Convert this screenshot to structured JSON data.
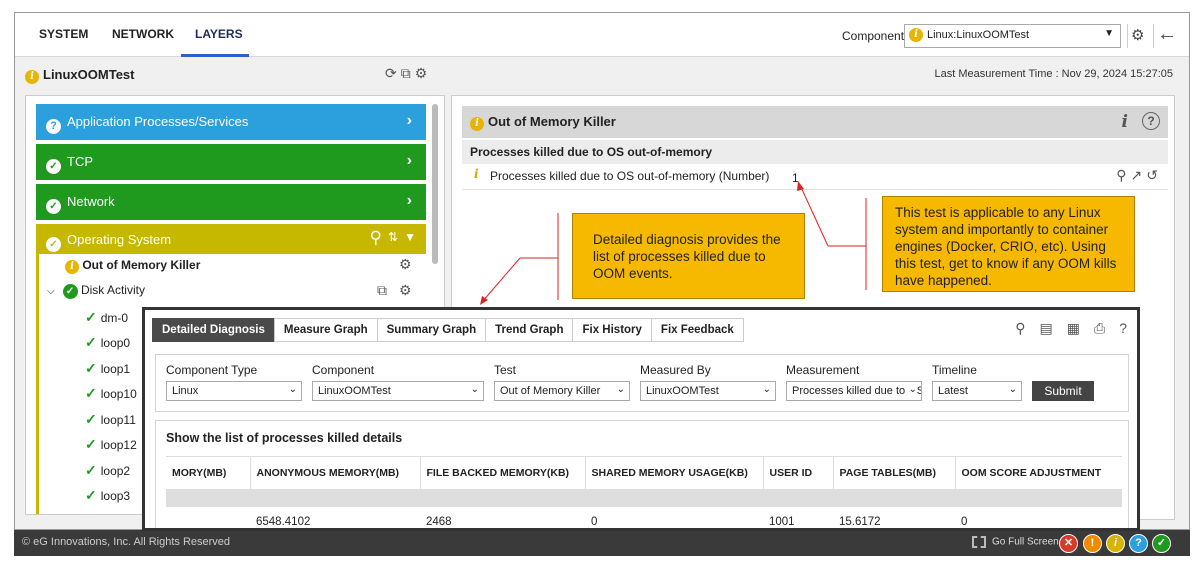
{
  "tabs": [
    "SYSTEM",
    "NETWORK",
    "LAYERS"
  ],
  "active_tab": "LAYERS",
  "component_label": "Component",
  "component_value": "Linux:LinuxOOMTest",
  "title": "LinuxOOMTest",
  "last_measurement": "Last Measurement Time : Nov 29, 2024 15:27:05",
  "layers": {
    "app": "Application Processes/Services",
    "tcp": "TCP",
    "network": "Network",
    "os": "Operating System"
  },
  "tree": {
    "oom": "Out of Memory Killer",
    "disk": "Disk Activity",
    "items": [
      "dm-0",
      "loop0",
      "loop1",
      "loop10",
      "loop11",
      "loop12",
      "loop2",
      "loop3"
    ]
  },
  "right": {
    "header": "Out of Memory Killer",
    "sub": "Processes killed due to OS out-of-memory",
    "measure": "Processes killed due to OS out-of-memory (Number)",
    "value": "1"
  },
  "callouts": {
    "diagnosis": "Detailed diagnosis provides the list of processes killed due to OOM events.",
    "applicable": "This test is applicable to any Linux system and importantly to container engines (Docker, CRIO, etc). Using this test, get to know if any OOM kills have happened."
  },
  "overlay": {
    "tabs": [
      "Detailed Diagnosis",
      "Measure Graph",
      "Summary Graph",
      "Trend Graph",
      "Fix History",
      "Fix Feedback"
    ],
    "filters": {
      "labels": [
        "Component Type",
        "Component",
        "Test",
        "Measured By",
        "Measurement",
        "Timeline"
      ],
      "values": [
        "Linux",
        "LinuxOOMTest",
        "Out of Memory Killer",
        "LinuxOOMTest",
        "Processes killed due to OS out-of-memory",
        "Latest"
      ],
      "submit": "Submit"
    },
    "details_title": "Show the list of processes killed details",
    "columns": [
      "MORY(MB)",
      "ANONYMOUS MEMORY(MB)",
      "FILE BACKED MEMORY(KB)",
      "SHARED MEMORY USAGE(KB)",
      "USER ID",
      "PAGE TABLES(MB)",
      "OOM SCORE ADJUSTMENT"
    ],
    "row": [
      "",
      "6548.4102",
      "2468",
      "0",
      "1001",
      "15.6172",
      "0"
    ]
  },
  "footer": {
    "copyright": "© eG Innovations, Inc. All Rights Reserved",
    "fullscreen": "Go Full Screen"
  },
  "colors": {
    "app_layer": "#2ba0dc",
    "ok_layer": "#1f9a1f",
    "os_layer": "#c6b800",
    "callout": "#f7b800"
  },
  "icons": [
    "info-icon",
    "chevron-down-icon",
    "settings-icon",
    "back-arrow-icon",
    "search-icon",
    "collapse-icon",
    "check-icon",
    "question-icon",
    "history-icon",
    "graph-icon",
    "pdf-icon",
    "excel-icon",
    "print-icon",
    "fullscreen-icon"
  ]
}
